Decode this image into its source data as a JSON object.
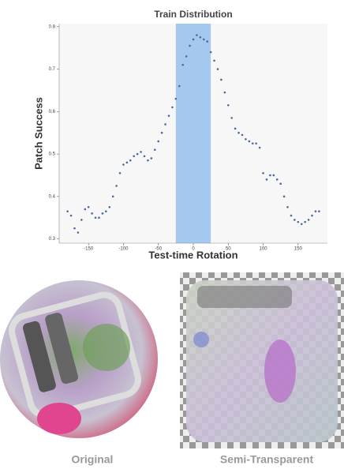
{
  "chart_data": {
    "type": "scatter",
    "title": "Train Distribution",
    "title_color": "#4a86c8",
    "xlabel": "Test-time Rotation",
    "ylabel": "Patch Success",
    "x": [
      -180,
      -175,
      -170,
      -165,
      -160,
      -155,
      -150,
      -145,
      -140,
      -135,
      -130,
      -125,
      -120,
      -115,
      -110,
      -105,
      -100,
      -95,
      -90,
      -85,
      -80,
      -75,
      -70,
      -65,
      -60,
      -55,
      -50,
      -45,
      -40,
      -35,
      -30,
      -25,
      -20,
      -15,
      -10,
      -5,
      0,
      5,
      10,
      15,
      20,
      25,
      30,
      35,
      40,
      45,
      50,
      55,
      60,
      65,
      70,
      75,
      80,
      85,
      90,
      95,
      100,
      105,
      110,
      115,
      120,
      125,
      130,
      135,
      140,
      145,
      150,
      155,
      160,
      165,
      170,
      175,
      180
    ],
    "series": [
      {
        "color": "#4c6a9c",
        "values": [
          0.365,
          0.355,
          0.325,
          0.315,
          0.345,
          0.37,
          0.375,
          0.36,
          0.35,
          0.35,
          0.36,
          0.365,
          0.375,
          0.4,
          0.425,
          0.455,
          0.475,
          0.48,
          0.485,
          0.495,
          0.5,
          0.505,
          0.495,
          0.485,
          0.49,
          0.51,
          0.53,
          0.55,
          0.57,
          0.59,
          0.61,
          0.63,
          0.66,
          0.71,
          0.73,
          0.755,
          0.77,
          0.78,
          0.775,
          0.77,
          0.765,
          0.74,
          0.72,
          0.7,
          0.675,
          0.645,
          0.615,
          0.585,
          0.56,
          0.55,
          0.545,
          0.535,
          0.53,
          0.525,
          0.525,
          0.515,
          0.455,
          0.44,
          0.45,
          0.45,
          0.44,
          0.43,
          0.4,
          0.375,
          0.355,
          0.345,
          0.34,
          0.335,
          0.34,
          0.345,
          0.355,
          0.365,
          0.365
        ]
      }
    ],
    "band": [
      -25,
      25
    ],
    "band_color": "#a4c8ee",
    "xlim": [
      -192,
      192
    ],
    "ylim": [
      0.29,
      0.807
    ],
    "xticks": [
      -150,
      -100,
      -50,
      0,
      50,
      100,
      150
    ],
    "yticks": [
      0.3,
      0.4,
      0.5,
      0.6,
      0.7,
      0.8
    ],
    "grid": false
  },
  "panels": [
    {
      "caption": "Original"
    },
    {
      "caption": "Semi-Transparent"
    }
  ]
}
